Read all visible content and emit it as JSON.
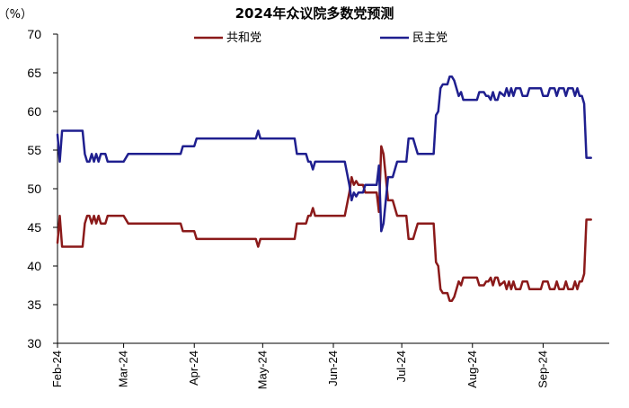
{
  "chart_data": {
    "type": "line",
    "title": "2024年众议院多数党预测",
    "ylabel": "（%）",
    "ylim": [
      30,
      70
    ],
    "yticks": [
      30,
      35,
      40,
      45,
      50,
      55,
      60,
      65,
      70
    ],
    "x_range": [
      "2024-02-01",
      "2024-09-30"
    ],
    "xticks": [
      {
        "date": "2024-02-01",
        "label": "Feb-24"
      },
      {
        "date": "2024-03-01",
        "label": "Mar-24"
      },
      {
        "date": "2024-04-01",
        "label": "Apr-24"
      },
      {
        "date": "2024-05-01",
        "label": "May-24"
      },
      {
        "date": "2024-06-01",
        "label": "Jun-24"
      },
      {
        "date": "2024-07-01",
        "label": "Jul-24"
      },
      {
        "date": "2024-08-01",
        "label": "Aug-24"
      },
      {
        "date": "2024-09-01",
        "label": "Sep-24"
      }
    ],
    "legend_position": "top",
    "grid": false,
    "series": [
      {
        "name": "共和党",
        "color": "#8B1A1A",
        "points": [
          [
            "2024-02-01",
            43
          ],
          [
            "2024-02-02",
            46.5
          ],
          [
            "2024-02-03",
            42.5
          ],
          [
            "2024-02-12",
            42.5
          ],
          [
            "2024-02-13",
            45.5
          ],
          [
            "2024-02-14",
            46.5
          ],
          [
            "2024-02-15",
            46.5
          ],
          [
            "2024-02-16",
            45.5
          ],
          [
            "2024-02-17",
            46.5
          ],
          [
            "2024-02-18",
            45.5
          ],
          [
            "2024-02-19",
            46.5
          ],
          [
            "2024-02-20",
            45.5
          ],
          [
            "2024-02-22",
            45.5
          ],
          [
            "2024-02-23",
            46.5
          ],
          [
            "2024-03-01",
            46.5
          ],
          [
            "2024-03-03",
            45.5
          ],
          [
            "2024-03-26",
            45.5
          ],
          [
            "2024-03-27",
            44.5
          ],
          [
            "2024-04-01",
            44.5
          ],
          [
            "2024-04-02",
            43.5
          ],
          [
            "2024-04-28",
            43.5
          ],
          [
            "2024-04-29",
            42.5
          ],
          [
            "2024-04-30",
            43.5
          ],
          [
            "2024-05-15",
            43.5
          ],
          [
            "2024-05-16",
            45.5
          ],
          [
            "2024-05-20",
            45.5
          ],
          [
            "2024-05-21",
            46.5
          ],
          [
            "2024-05-22",
            46.5
          ],
          [
            "2024-05-23",
            47.5
          ],
          [
            "2024-05-24",
            46.5
          ],
          [
            "2024-06-06",
            46.5
          ],
          [
            "2024-06-08",
            49.5
          ],
          [
            "2024-06-09",
            51.5
          ],
          [
            "2024-06-10",
            50.5
          ],
          [
            "2024-06-11",
            51
          ],
          [
            "2024-06-12",
            50.5
          ],
          [
            "2024-06-14",
            50.5
          ],
          [
            "2024-06-15",
            49.5
          ],
          [
            "2024-06-20",
            49.5
          ],
          [
            "2024-06-21",
            47
          ],
          [
            "2024-06-22",
            55.5
          ],
          [
            "2024-06-23",
            54.5
          ],
          [
            "2024-06-25",
            48.5
          ],
          [
            "2024-06-27",
            48.5
          ],
          [
            "2024-06-28",
            47.5
          ],
          [
            "2024-06-29",
            46.5
          ],
          [
            "2024-07-03",
            46.5
          ],
          [
            "2024-07-04",
            43.5
          ],
          [
            "2024-07-06",
            43.5
          ],
          [
            "2024-07-07",
            44.5
          ],
          [
            "2024-07-08",
            45.5
          ],
          [
            "2024-07-15",
            45.5
          ],
          [
            "2024-07-16",
            40.5
          ],
          [
            "2024-07-17",
            40
          ],
          [
            "2024-07-18",
            37
          ],
          [
            "2024-07-19",
            36.5
          ],
          [
            "2024-07-21",
            36.5
          ],
          [
            "2024-07-22",
            35.5
          ],
          [
            "2024-07-23",
            35.5
          ],
          [
            "2024-07-24",
            36
          ],
          [
            "2024-07-25",
            37
          ],
          [
            "2024-07-26",
            38
          ],
          [
            "2024-07-27",
            37.5
          ],
          [
            "2024-07-28",
            38.5
          ],
          [
            "2024-08-03",
            38.5
          ],
          [
            "2024-08-04",
            37.5
          ],
          [
            "2024-08-05",
            37.5
          ],
          [
            "2024-08-06",
            37.5
          ],
          [
            "2024-08-07",
            38
          ],
          [
            "2024-08-08",
            38
          ],
          [
            "2024-08-09",
            38.5
          ],
          [
            "2024-08-10",
            37.5
          ],
          [
            "2024-08-11",
            38.5
          ],
          [
            "2024-08-12",
            38.5
          ],
          [
            "2024-08-13",
            37.5
          ],
          [
            "2024-08-15",
            38
          ],
          [
            "2024-08-16",
            37
          ],
          [
            "2024-08-17",
            38
          ],
          [
            "2024-08-18",
            37
          ],
          [
            "2024-08-19",
            38
          ],
          [
            "2024-08-20",
            37
          ],
          [
            "2024-08-22",
            37
          ],
          [
            "2024-08-23",
            38
          ],
          [
            "2024-08-25",
            38
          ],
          [
            "2024-08-26",
            37
          ],
          [
            "2024-08-31",
            37
          ],
          [
            "2024-09-01",
            38
          ],
          [
            "2024-09-03",
            38
          ],
          [
            "2024-09-04",
            37
          ],
          [
            "2024-09-06",
            37
          ],
          [
            "2024-09-07",
            38
          ],
          [
            "2024-09-08",
            37
          ],
          [
            "2024-09-10",
            37
          ],
          [
            "2024-09-11",
            38
          ],
          [
            "2024-09-12",
            37
          ],
          [
            "2024-09-14",
            37
          ],
          [
            "2024-09-15",
            38
          ],
          [
            "2024-09-16",
            37
          ],
          [
            "2024-09-17",
            38
          ],
          [
            "2024-09-18",
            38
          ],
          [
            "2024-09-19",
            39
          ],
          [
            "2024-09-20",
            46
          ],
          [
            "2024-09-22",
            46
          ]
        ]
      },
      {
        "name": "民主党",
        "color": "#1F1F8F",
        "points": [
          [
            "2024-02-01",
            57
          ],
          [
            "2024-02-02",
            53.5
          ],
          [
            "2024-02-03",
            57.5
          ],
          [
            "2024-02-12",
            57.5
          ],
          [
            "2024-02-13",
            54.5
          ],
          [
            "2024-02-14",
            53.5
          ],
          [
            "2024-02-15",
            53.5
          ],
          [
            "2024-02-16",
            54.5
          ],
          [
            "2024-02-17",
            53.5
          ],
          [
            "2024-02-18",
            54.5
          ],
          [
            "2024-02-19",
            53.5
          ],
          [
            "2024-02-20",
            54.5
          ],
          [
            "2024-02-22",
            54.5
          ],
          [
            "2024-02-23",
            53.5
          ],
          [
            "2024-03-01",
            53.5
          ],
          [
            "2024-03-03",
            54.5
          ],
          [
            "2024-03-26",
            54.5
          ],
          [
            "2024-03-27",
            55.5
          ],
          [
            "2024-04-01",
            55.5
          ],
          [
            "2024-04-02",
            56.5
          ],
          [
            "2024-04-28",
            56.5
          ],
          [
            "2024-04-29",
            57.5
          ],
          [
            "2024-04-30",
            56.5
          ],
          [
            "2024-05-15",
            56.5
          ],
          [
            "2024-05-16",
            54.5
          ],
          [
            "2024-05-20",
            54.5
          ],
          [
            "2024-05-21",
            53.5
          ],
          [
            "2024-05-22",
            53.5
          ],
          [
            "2024-05-23",
            52.5
          ],
          [
            "2024-05-24",
            53.5
          ],
          [
            "2024-06-06",
            53.5
          ],
          [
            "2024-06-08",
            50.5
          ],
          [
            "2024-06-09",
            48.5
          ],
          [
            "2024-06-10",
            49.5
          ],
          [
            "2024-06-11",
            49
          ],
          [
            "2024-06-12",
            49.5
          ],
          [
            "2024-06-14",
            49.5
          ],
          [
            "2024-06-15",
            50.5
          ],
          [
            "2024-06-20",
            50.5
          ],
          [
            "2024-06-21",
            53
          ],
          [
            "2024-06-22",
            44.5
          ],
          [
            "2024-06-23",
            45.5
          ],
          [
            "2024-06-25",
            51.5
          ],
          [
            "2024-06-27",
            51.5
          ],
          [
            "2024-06-28",
            52.5
          ],
          [
            "2024-06-29",
            53.5
          ],
          [
            "2024-07-03",
            53.5
          ],
          [
            "2024-07-04",
            56.5
          ],
          [
            "2024-07-06",
            56.5
          ],
          [
            "2024-07-07",
            55.5
          ],
          [
            "2024-07-08",
            54.5
          ],
          [
            "2024-07-15",
            54.5
          ],
          [
            "2024-07-16",
            59.5
          ],
          [
            "2024-07-17",
            60
          ],
          [
            "2024-07-18",
            63
          ],
          [
            "2024-07-19",
            63.5
          ],
          [
            "2024-07-21",
            63.5
          ],
          [
            "2024-07-22",
            64.5
          ],
          [
            "2024-07-23",
            64.5
          ],
          [
            "2024-07-24",
            64
          ],
          [
            "2024-07-25",
            63
          ],
          [
            "2024-07-26",
            62
          ],
          [
            "2024-07-27",
            62.5
          ],
          [
            "2024-07-28",
            61.5
          ],
          [
            "2024-08-03",
            61.5
          ],
          [
            "2024-08-04",
            62.5
          ],
          [
            "2024-08-05",
            62.5
          ],
          [
            "2024-08-06",
            62.5
          ],
          [
            "2024-08-07",
            62
          ],
          [
            "2024-08-08",
            62
          ],
          [
            "2024-08-09",
            61.5
          ],
          [
            "2024-08-10",
            62.5
          ],
          [
            "2024-08-11",
            61.5
          ],
          [
            "2024-08-12",
            61.5
          ],
          [
            "2024-08-13",
            62.5
          ],
          [
            "2024-08-15",
            62
          ],
          [
            "2024-08-16",
            63
          ],
          [
            "2024-08-17",
            62
          ],
          [
            "2024-08-18",
            63
          ],
          [
            "2024-08-19",
            62
          ],
          [
            "2024-08-20",
            63
          ],
          [
            "2024-08-22",
            63
          ],
          [
            "2024-08-23",
            62
          ],
          [
            "2024-08-25",
            62
          ],
          [
            "2024-08-26",
            63
          ],
          [
            "2024-08-31",
            63
          ],
          [
            "2024-09-01",
            62
          ],
          [
            "2024-09-03",
            62
          ],
          [
            "2024-09-04",
            63
          ],
          [
            "2024-09-06",
            63
          ],
          [
            "2024-09-07",
            62
          ],
          [
            "2024-09-08",
            63
          ],
          [
            "2024-09-10",
            63
          ],
          [
            "2024-09-11",
            62
          ],
          [
            "2024-09-12",
            63
          ],
          [
            "2024-09-14",
            63
          ],
          [
            "2024-09-15",
            62
          ],
          [
            "2024-09-16",
            63
          ],
          [
            "2024-09-17",
            62
          ],
          [
            "2024-09-18",
            62
          ],
          [
            "2024-09-19",
            61
          ],
          [
            "2024-09-20",
            54
          ],
          [
            "2024-09-22",
            54
          ]
        ]
      }
    ]
  }
}
